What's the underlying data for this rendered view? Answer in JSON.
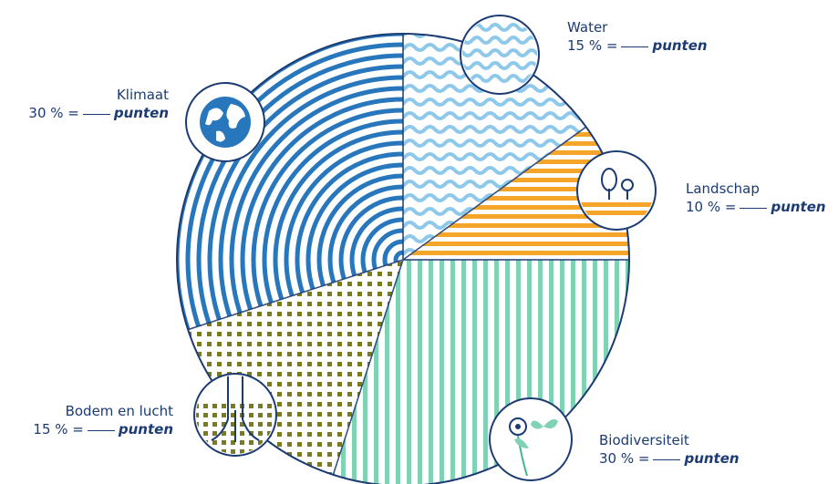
{
  "chart_data": {
    "type": "pie",
    "title": "",
    "slices": [
      {
        "key": "water",
        "label": "Water",
        "value": 15,
        "pattern": "waves",
        "color": "#8ec8ea"
      },
      {
        "key": "landschap",
        "label": "Landschap",
        "value": 10,
        "pattern": "hstripes",
        "color": "#f4a52a"
      },
      {
        "key": "biodiversiteit",
        "label": "Biodiversiteit",
        "value": 30,
        "pattern": "vstripes",
        "color": "#7fd3b4"
      },
      {
        "key": "bodem",
        "label": "Bodem en lucht",
        "value": 15,
        "pattern": "dots",
        "color": "#7a7a1e"
      },
      {
        "key": "klimaat",
        "label": "Klimaat",
        "value": 30,
        "pattern": "arcs",
        "color": "#2877bd"
      }
    ],
    "value_suffix": " % =",
    "unit_text": "punten",
    "icons": [
      "waves-icon",
      "trees-icon",
      "flower-butterfly-icon",
      "roots-icon",
      "globe-icon"
    ],
    "outline_color": "#1c3b73"
  }
}
